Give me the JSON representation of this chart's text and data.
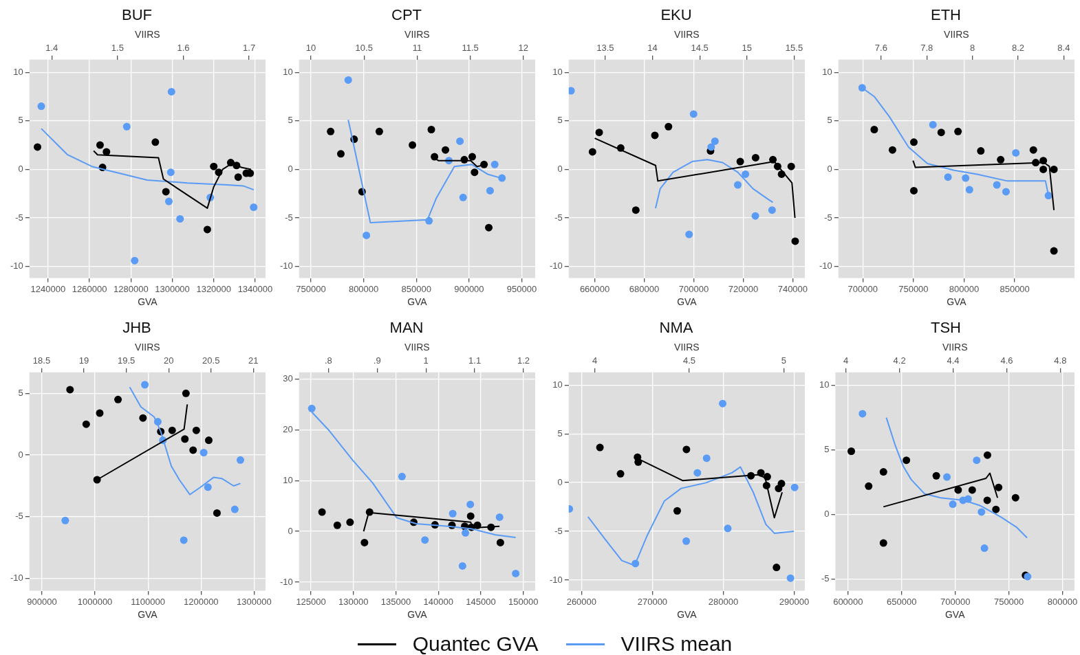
{
  "chart_data": [
    {
      "type": "scatter",
      "title": "BUF",
      "xlabel": "GVA",
      "x2label": "VIIRS",
      "xlim": [
        1231000,
        1345000
      ],
      "xticks": [
        1240000,
        1260000,
        1280000,
        1300000,
        1320000,
        1340000
      ],
      "x2lim": [
        1.366,
        1.725
      ],
      "x2ticks": [
        1.4,
        1.5,
        1.6,
        1.7
      ],
      "ylim": [
        -11.2,
        11.3
      ],
      "yticks": [
        -10,
        -5,
        0,
        5,
        10
      ],
      "grid": true,
      "legend": "bottom",
      "series": [
        {
          "type": "scatter",
          "marker": "circle",
          "color": "#000000",
          "x": [
            1234900,
            1265100,
            1268200,
            1266300,
            1291800,
            1296900,
            1316900,
            1320000,
            1322400,
            1328200,
            1331000,
            1331800,
            1335700,
            1337600
          ],
          "values": [
            2.3,
            2.5,
            1.8,
            0.2,
            2.8,
            -2.3,
            -6.2,
            0.3,
            -0.3,
            0.7,
            0.4,
            -0.8,
            -0.4,
            -0.4
          ]
        },
        {
          "type": "scatter",
          "marker": "circle",
          "color": "#5a9bf6",
          "axis": "x2",
          "x": [
            1.384,
            1.514,
            1.582,
            1.581,
            1.578,
            1.595,
            1.526,
            1.641,
            1.707
          ],
          "values": [
            6.5,
            4.4,
            8.0,
            -0.3,
            -3.3,
            -5.1,
            -9.4,
            -2.9,
            -3.9
          ]
        },
        {
          "type": "line",
          "marker": "none",
          "name": "Quantec GVA",
          "color": "#000000",
          "x": [
            1262000,
            1263900,
            1293300,
            1295700,
            1316900,
            1320000,
            1324300,
            1329400,
            1333300,
            1338000
          ],
          "values": [
            1.9,
            1.5,
            1.2,
            -1.0,
            -4.0,
            -1.8,
            0.0,
            0.7,
            0.2,
            0.0
          ]
        },
        {
          "type": "line",
          "marker": "none",
          "name": "VIIRS mean",
          "color": "#5a9bf6",
          "axis": "x2",
          "x": [
            1.384,
            1.424,
            1.461,
            1.509,
            1.545,
            1.606,
            1.667,
            1.691,
            1.707
          ],
          "values": [
            4.2,
            1.5,
            0.3,
            -0.5,
            -1.1,
            -1.4,
            -1.6,
            -1.7,
            -2.1
          ]
        }
      ]
    },
    {
      "type": "scatter",
      "title": "CPT",
      "xlabel": "GVA",
      "x2label": "VIIRS",
      "xlim": [
        738800,
        962700
      ],
      "xticks": [
        750000,
        800000,
        850000,
        900000,
        950000
      ],
      "x2lim": [
        9.888,
        12.112
      ],
      "x2ticks": [
        10,
        10.5,
        11,
        11.5,
        12
      ],
      "ylim": [
        -11.2,
        11.3
      ],
      "yticks": [
        -10,
        -5,
        0,
        5,
        10
      ],
      "grid": true,
      "legend": "bottom",
      "series": [
        {
          "type": "scatter",
          "marker": "circle",
          "color": "#000000",
          "x": [
            768700,
            778400,
            791000,
            798500,
            814900,
            846300,
            864200,
            867200,
            877600,
            895500,
            903000,
            905200,
            914200,
            918700
          ],
          "values": [
            3.9,
            1.6,
            3.1,
            -2.3,
            3.9,
            2.5,
            4.1,
            1.3,
            2.0,
            1.0,
            1.3,
            -0.3,
            0.5,
            -6.0
          ]
        },
        {
          "type": "scatter",
          "marker": "circle",
          "color": "#5a9bf6",
          "axis": "x2",
          "x": [
            10.351,
            10.522,
            11.112,
            11.403,
            11.433,
            11.299,
            11.731,
            11.687,
            11.799
          ],
          "values": [
            9.2,
            -6.8,
            -5.3,
            2.9,
            -2.9,
            0.9,
            0.5,
            -2.2,
            -0.9
          ]
        },
        {
          "type": "line",
          "marker": "none",
          "name": "Quantec GVA",
          "color": "#000000",
          "x": [
            866400,
            870900,
            901500,
            907500,
            917200
          ],
          "values": [
            1.2,
            0.9,
            0.9,
            0.3,
            0.5
          ]
        },
        {
          "type": "line",
          "marker": "none",
          "name": "VIIRS mean",
          "color": "#5a9bf6",
          "axis": "x2",
          "x": [
            10.351,
            10.56,
            11.097,
            11.179,
            11.351,
            11.515,
            11.664,
            11.791
          ],
          "values": [
            5.1,
            -5.5,
            -5.2,
            -3.0,
            0.3,
            0.5,
            -0.5,
            -0.9
          ]
        }
      ]
    },
    {
      "type": "scatter",
      "title": "EKU",
      "xlabel": "GVA",
      "x2label": "VIIRS",
      "xlim": [
        649500,
        744900
      ],
      "xticks": [
        660000,
        680000,
        700000,
        720000,
        740000
      ],
      "x2lim": [
        13.113,
        15.613
      ],
      "x2ticks": [
        13.5,
        14,
        14.5,
        15,
        15.5
      ],
      "ylim": [
        -11.2,
        11.3
      ],
      "yticks": [
        -10,
        -5,
        0,
        5,
        10
      ],
      "grid": true,
      "legend": "bottom",
      "series": [
        {
          "type": "scatter",
          "marker": "circle",
          "color": "#000000",
          "x": [
            659100,
            661800,
            670500,
            676600,
            684300,
            689800,
            706800,
            718800,
            725000,
            732000,
            733900,
            735500,
            739400,
            741000
          ],
          "values": [
            1.8,
            3.8,
            2.2,
            -4.2,
            3.5,
            4.4,
            1.9,
            0.8,
            1.2,
            1.0,
            0.3,
            -0.5,
            0.3,
            -7.4
          ]
        },
        {
          "type": "scatter",
          "marker": "circle",
          "color": "#5a9bf6",
          "axis": "x2",
          "x": [
            13.137,
            14.435,
            14.387,
            14.621,
            14.661,
            14.903,
            14.984,
            15.089,
            15.266
          ],
          "values": [
            8.1,
            5.7,
            -6.7,
            2.3,
            2.9,
            -1.6,
            -0.5,
            -4.8,
            -4.2
          ]
        },
        {
          "type": "line",
          "marker": "none",
          "name": "Quantec GVA",
          "color": "#000000",
          "x": [
            660000,
            684600,
            685500,
            732600,
            739700,
            740900
          ],
          "values": [
            3.2,
            0.4,
            -1.2,
            0.8,
            -1.4,
            -5.0
          ]
        },
        {
          "type": "line",
          "marker": "none",
          "name": "VIIRS mean",
          "color": "#5a9bf6",
          "axis": "x2",
          "x": [
            14.032,
            14.081,
            14.218,
            14.419,
            14.581,
            14.742,
            14.903,
            15.065,
            15.226,
            15.274
          ],
          "values": [
            -4.0,
            -2.0,
            -0.3,
            0.8,
            1.0,
            0.7,
            -0.3,
            -2.0,
            -3.1,
            -3.4
          ]
        }
      ]
    },
    {
      "type": "scatter",
      "title": "ETH",
      "xlabel": "GVA",
      "x2label": "VIIRS",
      "xlim": [
        675900,
        909000
      ],
      "xticks": [
        700000,
        750000,
        800000,
        850000
      ],
      "x2lim": [
        7.413,
        8.447
      ],
      "x2ticks": [
        7.6,
        7.8,
        8,
        8.2,
        8.4
      ],
      "ylim": [
        -11.2,
        11.3
      ],
      "yticks": [
        -10,
        -5,
        0,
        5,
        10
      ],
      "grid": true,
      "legend": "bottom",
      "series": [
        {
          "type": "scatter",
          "marker": "circle",
          "color": "#000000",
          "x": [
            711300,
            729300,
            750400,
            750400,
            777400,
            794000,
            816500,
            836100,
            868400,
            870700,
            878200,
            878200,
            888700,
            888700
          ],
          "values": [
            4.1,
            2.0,
            2.8,
            -2.2,
            3.8,
            3.9,
            1.9,
            1.0,
            2.0,
            0.7,
            0.9,
            0.0,
            0.0,
            -8.4
          ]
        },
        {
          "type": "scatter",
          "marker": "circle",
          "color": "#5a9bf6",
          "axis": "x2",
          "x": [
            7.517,
            7.827,
            7.893,
            7.97,
            7.987,
            8.107,
            8.147,
            8.19,
            8.333
          ],
          "values": [
            8.4,
            4.6,
            -0.8,
            -0.9,
            -2.1,
            -1.6,
            -2.3,
            1.7,
            -2.7
          ]
        },
        {
          "type": "line",
          "marker": "none",
          "name": "Quantec GVA",
          "color": "#000000",
          "x": [
            749600,
            751900,
            878900,
            884200,
            888700
          ],
          "values": [
            0.9,
            0.2,
            0.7,
            0.3,
            -4.2
          ]
        },
        {
          "type": "line",
          "marker": "none",
          "name": "VIIRS mean",
          "color": "#5a9bf6",
          "axis": "x2",
          "x": [
            7.517,
            7.57,
            7.637,
            7.72,
            7.803,
            7.92,
            8.02,
            8.153,
            8.32,
            8.333
          ],
          "values": [
            8.4,
            7.5,
            5.4,
            2.3,
            0.6,
            -0.1,
            -0.5,
            -1.2,
            -1.2,
            -2.7
          ]
        }
      ]
    },
    {
      "type": "scatter",
      "title": "JHB",
      "xlabel": "GVA",
      "x2label": "VIIRS",
      "xlim": [
        876500,
        1321500
      ],
      "xticks": [
        900000,
        1000000,
        1100000,
        1200000,
        1300000
      ],
      "x2lim": [
        18.356,
        21.144
      ],
      "x2ticks": [
        18.5,
        19,
        19.5,
        20,
        20.5,
        21
      ],
      "ylim": [
        -11,
        6.7
      ],
      "yticks": [
        -10,
        -5,
        0,
        5
      ],
      "grid": true,
      "legend": "bottom",
      "series": [
        {
          "type": "scatter",
          "marker": "circle",
          "color": "#000000",
          "x": [
            953000,
            983500,
            1009000,
            1043500,
            1090500,
            1124000,
            1145500,
            1169500,
            1171500,
            1185000,
            1191000,
            1214500,
            1230000,
            1004000
          ],
          "values": [
            5.3,
            2.5,
            3.4,
            4.5,
            3.0,
            1.9,
            2.0,
            1.3,
            5.0,
            0.4,
            2.0,
            1.2,
            -4.7,
            -2.0
          ]
        },
        {
          "type": "scatter",
          "marker": "circle",
          "color": "#5a9bf6",
          "axis": "x2",
          "x": [
            18.779,
            19.719,
            19.872,
            19.932,
            20.179,
            20.414,
            20.464,
            20.781,
            20.847
          ],
          "values": [
            -5.3,
            5.7,
            2.7,
            1.2,
            -6.9,
            0.2,
            -2.6,
            -4.4,
            -0.4
          ]
        },
        {
          "type": "line",
          "marker": "none",
          "name": "Quantec GVA",
          "color": "#000000",
          "x": [
            1004000,
            1168000,
            1174000
          ],
          "values": [
            -2.0,
            2.1,
            4.1
          ]
        },
        {
          "type": "line",
          "marker": "none",
          "name": "VIIRS mean",
          "color": "#5a9bf6",
          "axis": "x2",
          "x": [
            19.54,
            19.672,
            19.828,
            19.907,
            20.032,
            20.126,
            20.251,
            20.377,
            20.533,
            20.627,
            20.768,
            20.847
          ],
          "values": [
            5.5,
            3.9,
            3.1,
            1.9,
            -0.9,
            -2.0,
            -3.2,
            -2.6,
            -1.8,
            -1.9,
            -2.5,
            -2.3
          ]
        }
      ]
    },
    {
      "type": "scatter",
      "title": "MAN",
      "xlabel": "GVA",
      "x2label": "VIIRS",
      "xlim": [
        123600,
        151400
      ],
      "xticks": [
        125000,
        130000,
        135000,
        140000,
        145000,
        150000
      ],
      "x2lim": [
        0.74,
        1.224
      ],
      "x2ticks": [
        {
          "value": 0.8,
          "label": ".8"
        },
        {
          "value": 0.9,
          "label": ".9"
        },
        1,
        1.1,
        1.2
      ],
      "ylim": [
        -11.7,
        31.3
      ],
      "yticks": [
        -10,
        0,
        10,
        20,
        30
      ],
      "grid": true,
      "legend": "bottom",
      "series": [
        {
          "type": "scatter",
          "marker": "circle",
          "color": "#000000",
          "x": [
            126300,
            128100,
            129600,
            131300,
            131900,
            137100,
            139600,
            141600,
            143100,
            143800,
            143900,
            144600,
            146200,
            147300
          ],
          "values": [
            3.8,
            1.2,
            1.8,
            -2.2,
            3.8,
            1.8,
            1.3,
            1.2,
            1.0,
            3.0,
            0.8,
            1.2,
            0.8,
            -2.2
          ]
        },
        {
          "type": "scatter",
          "marker": "circle",
          "color": "#5a9bf6",
          "axis": "x2",
          "x": [
            0.766,
            0.951,
            0.998,
            1.055,
            1.075,
            1.081,
            1.091,
            1.151,
            1.184
          ],
          "values": [
            24.2,
            10.8,
            -1.7,
            3.5,
            -6.8,
            -0.3,
            5.3,
            2.8,
            -8.3
          ]
        },
        {
          "type": "line",
          "marker": "none",
          "name": "Quantec GVA",
          "color": "#000000",
          "x": [
            131200,
            131800,
            143800,
            144100,
            147200
          ],
          "values": [
            0.0,
            3.7,
            1.8,
            0.7,
            1.0
          ]
        },
        {
          "type": "line",
          "marker": "none",
          "name": "VIIRS mean",
          "color": "#5a9bf6",
          "axis": "x2",
          "x": [
            0.766,
            0.802,
            0.85,
            0.891,
            0.94,
            0.98,
            1.046,
            1.094,
            1.143,
            1.184
          ],
          "values": [
            23.5,
            19.8,
            14.0,
            9.5,
            2.7,
            1.5,
            1.0,
            0.5,
            -0.7,
            -1.2
          ]
        }
      ]
    },
    {
      "type": "scatter",
      "title": "NMA",
      "xlabel": "GVA",
      "x2label": "VIIRS",
      "xlim": [
        258200,
        291500
      ],
      "xticks": [
        260000,
        270000,
        280000,
        290000
      ],
      "x2lim": [
        3.862,
        5.112
      ],
      "x2ticks": [
        4,
        4.5,
        5
      ],
      "ylim": [
        -11.1,
        11.3
      ],
      "yticks": [
        -10,
        -5,
        0,
        5,
        10
      ],
      "grid": true,
      "legend": "bottom",
      "series": [
        {
          "type": "scatter",
          "marker": "circle",
          "color": "#000000",
          "x": [
            262600,
            265500,
            267900,
            268000,
            273500,
            274800,
            283900,
            285300,
            286200,
            286100,
            287500,
            287800,
            288200
          ],
          "values": [
            3.6,
            0.9,
            2.6,
            2.1,
            -2.9,
            3.4,
            0.7,
            1.0,
            0.6,
            -0.3,
            -8.7,
            -0.6,
            -0.1
          ]
        },
        {
          "type": "scatter",
          "marker": "circle",
          "color": "#5a9bf6",
          "axis": "x2",
          "x": [
            3.865,
            4.215,
            4.484,
            4.543,
            4.592,
            4.677,
            4.704,
            5.036,
            5.058
          ],
          "values": [
            -2.7,
            -8.3,
            -6.0,
            1.0,
            2.5,
            8.1,
            -4.7,
            -9.8,
            -0.5
          ]
        },
        {
          "type": "line",
          "marker": "none",
          "name": "Quantec GVA",
          "color": "#000000",
          "x": [
            268100,
            274300,
            284900,
            285900,
            287200,
            288300
          ],
          "values": [
            2.4,
            0.2,
            0.8,
            0.5,
            -3.6,
            -1.0
          ]
        },
        {
          "type": "line",
          "marker": "none",
          "name": "VIIRS mean",
          "color": "#5a9bf6",
          "axis": "x2",
          "x": [
            3.964,
            4.054,
            4.143,
            4.211,
            4.278,
            4.368,
            4.457,
            4.592,
            4.726,
            4.771,
            4.839,
            4.906,
            4.951,
            5.054
          ],
          "values": [
            -3.5,
            -5.8,
            -8.0,
            -8.5,
            -5.4,
            -1.9,
            -0.6,
            0.0,
            1.0,
            1.6,
            -1.0,
            -4.3,
            -5.2,
            -5.0
          ]
        }
      ]
    },
    {
      "type": "scatter",
      "title": "TSH",
      "xlabel": "GVA",
      "x2label": "VIIRS",
      "xlim": [
        588200,
        811200
      ],
      "xticks": [
        600000,
        650000,
        700000,
        750000,
        800000
      ],
      "x2lim": [
        3.961,
        4.853
      ],
      "x2ticks": [
        4,
        4.2,
        4.4,
        4.6,
        4.8
      ],
      "ylim": [
        -5.9,
        11
      ],
      "yticks": [
        -5,
        0,
        5,
        10
      ],
      "grid": true,
      "legend": "bottom",
      "series": [
        {
          "type": "scatter",
          "marker": "circle",
          "color": "#000000",
          "x": [
            603000,
            619200,
            633000,
            633000,
            654400,
            682300,
            702700,
            715800,
            730000,
            729800,
            737900,
            740400,
            756200,
            765500
          ],
          "values": [
            4.9,
            2.2,
            3.3,
            -2.2,
            4.2,
            3.0,
            1.9,
            1.9,
            4.6,
            1.1,
            0.4,
            2.1,
            1.3,
            -4.7
          ]
        },
        {
          "type": "scatter",
          "marker": "circle",
          "color": "#5a9bf6",
          "axis": "x2",
          "x": [
            4.062,
            4.377,
            4.399,
            4.437,
            4.456,
            4.488,
            4.506,
            4.517,
            4.678
          ],
          "values": [
            7.8,
            2.9,
            0.8,
            1.1,
            1.2,
            4.2,
            0.2,
            -2.6,
            -4.8
          ]
        },
        {
          "type": "line",
          "marker": "none",
          "name": "Quantec GVA",
          "color": "#000000",
          "x": [
            633000,
            728600,
            732300,
            739400
          ],
          "values": [
            0.6,
            2.8,
            3.2,
            1.3
          ]
        },
        {
          "type": "line",
          "marker": "none",
          "name": "VIIRS mean",
          "color": "#5a9bf6",
          "axis": "x2",
          "x": [
            4.151,
            4.185,
            4.215,
            4.244,
            4.294,
            4.353,
            4.441,
            4.5,
            4.579,
            4.638,
            4.676
          ],
          "values": [
            7.5,
            5.3,
            3.7,
            2.7,
            1.6,
            1.3,
            1.1,
            0.7,
            -0.2,
            -1.0,
            -1.8
          ]
        }
      ]
    }
  ]
}
